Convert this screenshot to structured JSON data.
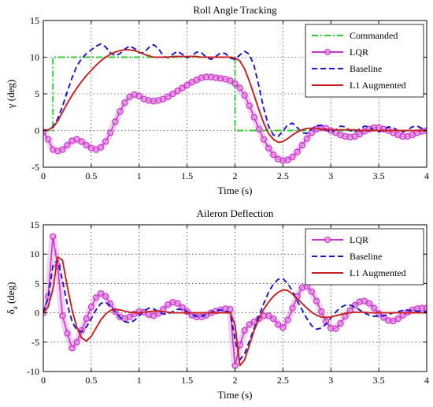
{
  "chart_data": [
    {
      "type": "line",
      "title": "Roll Angle Tracking",
      "xlabel": "Time (s)",
      "ylabel": "γ (deg)",
      "xlim": [
        0,
        4
      ],
      "ylim": [
        -5,
        15
      ],
      "xticks": [
        "0",
        "0.5",
        "1",
        "1.5",
        "2",
        "2.5",
        "3",
        "3.5",
        "4"
      ],
      "yticks": [
        "-5",
        "0",
        "5",
        "10",
        "15"
      ],
      "grid": true,
      "legend_position": "top-right",
      "series": [
        {
          "name": "Commanded",
          "color": "#2ecc2e",
          "style": "dashdot",
          "marker": "none",
          "x": [
            0,
            0.1,
            0.1,
            2.0,
            2.0,
            4.0
          ],
          "y": [
            0,
            0,
            10,
            10,
            0,
            0
          ]
        },
        {
          "name": "LQR",
          "color": "#cc33cc",
          "style": "solid",
          "marker": "circle",
          "x": [
            0,
            0.05,
            0.1,
            0.15,
            0.2,
            0.25,
            0.3,
            0.35,
            0.4,
            0.45,
            0.5,
            0.55,
            0.6,
            0.65,
            0.7,
            0.75,
            0.8,
            0.85,
            0.9,
            0.95,
            1.0,
            1.05,
            1.1,
            1.15,
            1.2,
            1.25,
            1.3,
            1.35,
            1.4,
            1.45,
            1.5,
            1.55,
            1.6,
            1.65,
            1.7,
            1.75,
            1.8,
            1.85,
            1.9,
            1.95,
            2.0,
            2.05,
            2.1,
            2.15,
            2.2,
            2.25,
            2.3,
            2.35,
            2.4,
            2.45,
            2.5,
            2.55,
            2.6,
            2.65,
            2.7,
            2.75,
            2.8,
            2.85,
            2.9,
            2.95,
            3.0,
            3.05,
            3.1,
            3.15,
            3.2,
            3.25,
            3.3,
            3.35,
            3.4,
            3.45,
            3.5,
            3.55,
            3.6,
            3.65,
            3.7,
            3.75,
            3.8,
            3.85,
            3.9,
            3.95,
            4.0
          ],
          "y": [
            -0.2,
            -1.2,
            -2.6,
            -2.8,
            -2.6,
            -2.0,
            -1.4,
            -1.2,
            -1.5,
            -2.0,
            -2.4,
            -2.6,
            -2.3,
            -1.5,
            -0.3,
            1.2,
            2.6,
            3.8,
            4.6,
            4.9,
            4.7,
            4.3,
            4.1,
            4.0,
            4.1,
            4.3,
            4.6,
            5.0,
            5.4,
            5.8,
            6.2,
            6.6,
            6.9,
            7.2,
            7.3,
            7.3,
            7.2,
            7.1,
            7.0,
            6.8,
            6.4,
            5.8,
            4.8,
            3.4,
            1.8,
            0.2,
            -1.2,
            -2.4,
            -3.3,
            -3.9,
            -4.1,
            -4.0,
            -3.6,
            -2.9,
            -2.0,
            -1.1,
            -0.3,
            0.2,
            0.4,
            0.3,
            0.0,
            -0.3,
            -0.6,
            -0.8,
            -0.9,
            -0.8,
            -0.5,
            -0.1,
            0.2,
            0.4,
            0.4,
            0.2,
            0.0,
            -0.3,
            -0.6,
            -0.8,
            -0.8,
            -0.6,
            -0.3,
            -0.1,
            0.0
          ]
        },
        {
          "name": "Baseline",
          "color": "#1414d2",
          "style": "dashed",
          "marker": "none",
          "x": [
            0,
            0.05,
            0.1,
            0.15,
            0.2,
            0.25,
            0.3,
            0.35,
            0.4,
            0.45,
            0.5,
            0.55,
            0.6,
            0.65,
            0.7,
            0.75,
            0.8,
            0.85,
            0.9,
            0.95,
            1.0,
            1.05,
            1.1,
            1.15,
            1.2,
            1.25,
            1.3,
            1.35,
            1.4,
            1.45,
            1.5,
            1.55,
            1.6,
            1.65,
            1.7,
            1.75,
            1.8,
            1.85,
            1.9,
            1.95,
            2.0,
            2.05,
            2.1,
            2.15,
            2.2,
            2.25,
            2.3,
            2.35,
            2.4,
            2.45,
            2.5,
            2.55,
            2.6,
            2.65,
            2.7,
            2.75,
            2.8,
            2.85,
            2.9,
            2.95,
            3.0,
            3.05,
            3.1,
            3.15,
            3.2,
            3.25,
            3.3,
            3.35,
            3.4,
            3.45,
            3.5,
            3.55,
            3.6,
            3.65,
            3.7,
            3.75,
            3.8,
            3.85,
            3.9,
            3.95,
            4.0
          ],
          "y": [
            0,
            0.1,
            0.5,
            1.6,
            3.3,
            5.3,
            7.2,
            8.8,
            9.8,
            10.5,
            11.0,
            11.5,
            11.8,
            11.4,
            10.6,
            10.2,
            10.5,
            11.1,
            11.5,
            11.2,
            10.6,
            10.6,
            11.3,
            11.7,
            11.2,
            10.2,
            9.9,
            10.4,
            10.8,
            10.4,
            9.9,
            10.2,
            10.7,
            10.6,
            10.0,
            9.7,
            10.1,
            10.6,
            10.5,
            9.9,
            9.7,
            10.3,
            10.8,
            10.4,
            8.8,
            6.0,
            3.0,
            0.6,
            -0.6,
            -0.8,
            -0.1,
            0.8,
            1.0,
            0.4,
            -0.3,
            -0.4,
            0.2,
            0.7,
            0.7,
            0.1,
            -0.2,
            0.1,
            0.6,
            0.5,
            0.0,
            -0.2,
            0.2,
            0.6,
            0.5,
            0.0,
            -0.2,
            0.1,
            0.5,
            0.4,
            0.0,
            -0.2,
            0.1,
            0.5,
            0.6,
            0.3,
            0.0
          ]
        },
        {
          "name": "L1 Augmented",
          "color": "#c81e1e",
          "style": "solid",
          "marker": "none",
          "x": [
            0,
            0.05,
            0.1,
            0.15,
            0.2,
            0.25,
            0.3,
            0.35,
            0.4,
            0.45,
            0.5,
            0.55,
            0.6,
            0.65,
            0.7,
            0.75,
            0.8,
            0.85,
            0.9,
            0.95,
            1.0,
            1.05,
            1.1,
            1.15,
            1.2,
            1.25,
            1.3,
            1.35,
            1.4,
            1.45,
            1.5,
            1.55,
            1.6,
            1.65,
            1.7,
            1.75,
            1.8,
            1.85,
            1.9,
            1.95,
            2.0,
            2.05,
            2.1,
            2.15,
            2.2,
            2.25,
            2.3,
            2.35,
            2.4,
            2.45,
            2.5,
            2.55,
            2.6,
            2.65,
            2.7,
            2.75,
            2.8,
            2.85,
            2.9,
            2.95,
            3.0,
            3.05,
            3.1,
            3.15,
            3.2,
            3.25,
            3.3,
            3.35,
            3.4,
            3.45,
            3.5,
            3.55,
            3.6,
            3.65,
            3.7,
            3.75,
            3.8,
            3.85,
            3.9,
            3.95,
            4.0
          ],
          "y": [
            0,
            0.1,
            0.4,
            1.3,
            2.5,
            3.7,
            4.8,
            5.8,
            6.7,
            7.5,
            8.2,
            8.9,
            9.5,
            10.0,
            10.4,
            10.7,
            10.9,
            11.0,
            11.0,
            10.9,
            10.7,
            10.4,
            10.2,
            10.0,
            10.0,
            10.0,
            10.0,
            10.1,
            10.1,
            10.1,
            10.1,
            10.1,
            10.1,
            10.0,
            10.0,
            10.0,
            10.0,
            10.0,
            10.0,
            10.0,
            9.9,
            9.5,
            8.4,
            6.7,
            4.8,
            2.8,
            1.0,
            -0.4,
            -1.2,
            -1.6,
            -1.5,
            -1.1,
            -0.6,
            -0.2,
            0.1,
            0.3,
            0.3,
            0.3,
            0.2,
            0.1,
            0.1,
            0.1,
            0.1,
            0.1,
            0.1,
            0.1,
            0.0,
            0.0,
            0.0,
            0.0,
            0.0,
            0.0,
            0.0,
            0.0,
            0.0,
            0.0,
            0.0,
            0.0,
            0.0,
            0.0,
            0.0
          ]
        }
      ]
    },
    {
      "type": "line",
      "title": "Aileron Deflection",
      "xlabel": "Time (s)",
      "ylabel": "δa (deg)",
      "ylabel_main": "δ",
      "ylabel_sub": "a",
      "ylabel_unit": " (deg)",
      "xlim": [
        0,
        4
      ],
      "ylim": [
        -10,
        15
      ],
      "xticks": [
        "0",
        "0.5",
        "1",
        "1.5",
        "2",
        "2.5",
        "3",
        "3.5",
        "4"
      ],
      "yticks": [
        "-10",
        "-5",
        "0",
        "5",
        "10",
        "15"
      ],
      "grid": true,
      "legend_position": "top-right",
      "series": [
        {
          "name": "LQR",
          "color": "#cc33cc",
          "style": "solid",
          "marker": "circle",
          "x": [
            0,
            0.05,
            0.1,
            0.15,
            0.2,
            0.25,
            0.3,
            0.35,
            0.4,
            0.45,
            0.5,
            0.55,
            0.6,
            0.65,
            0.7,
            0.75,
            0.8,
            0.85,
            0.9,
            0.95,
            1.0,
            1.05,
            1.1,
            1.15,
            1.2,
            1.25,
            1.3,
            1.35,
            1.4,
            1.45,
            1.5,
            1.55,
            1.6,
            1.65,
            1.7,
            1.75,
            1.8,
            1.85,
            1.9,
            1.95,
            2.0,
            2.05,
            2.1,
            2.15,
            2.2,
            2.25,
            2.3,
            2.35,
            2.4,
            2.45,
            2.5,
            2.55,
            2.6,
            2.65,
            2.7,
            2.75,
            2.8,
            2.85,
            2.9,
            2.95,
            3.0,
            3.05,
            3.1,
            3.15,
            3.2,
            3.25,
            3.3,
            3.35,
            3.4,
            3.45,
            3.5,
            3.55,
            3.6,
            3.65,
            3.7,
            3.75,
            3.8,
            3.85,
            3.9,
            3.95,
            4.0
          ],
          "y": [
            0.0,
            2.8,
            13.0,
            8.0,
            -0.5,
            -3.5,
            -6.0,
            -5.0,
            -3.0,
            -1.0,
            1.0,
            2.6,
            3.3,
            2.8,
            1.5,
            0.2,
            -0.7,
            -1.0,
            -0.7,
            -0.2,
            0.2,
            0.1,
            -0.3,
            -0.5,
            -0.1,
            0.6,
            1.4,
            1.8,
            1.6,
            0.9,
            0.2,
            -0.4,
            -0.7,
            -0.7,
            -0.4,
            0.0,
            0.3,
            0.5,
            0.7,
            0.6,
            -9.0,
            -5.5,
            -3.0,
            -2.0,
            -1.5,
            -1.0,
            -0.5,
            -0.5,
            -1.0,
            -2.0,
            -2.5,
            -1.2,
            0.8,
            2.8,
            4.3,
            4.5,
            3.6,
            2.0,
            0.2,
            -1.5,
            -2.6,
            -2.7,
            -1.8,
            -0.6,
            0.4,
            1.3,
            1.9,
            2.0,
            1.6,
            0.8,
            -0.1,
            -0.8,
            -1.3,
            -1.4,
            -1.0,
            -0.4,
            0.1,
            0.5,
            0.7,
            0.8,
            0.8
          ]
        },
        {
          "name": "Baseline",
          "color": "#1414d2",
          "style": "dashed",
          "marker": "none",
          "x": [
            0,
            0.05,
            0.1,
            0.15,
            0.2,
            0.25,
            0.3,
            0.35,
            0.4,
            0.45,
            0.5,
            0.55,
            0.6,
            0.65,
            0.7,
            0.75,
            0.8,
            0.85,
            0.9,
            0.95,
            1.0,
            1.05,
            1.1,
            1.15,
            1.2,
            1.25,
            1.3,
            1.35,
            1.4,
            1.45,
            1.5,
            1.55,
            1.6,
            1.65,
            1.7,
            1.75,
            1.8,
            1.85,
            1.9,
            1.95,
            2.0,
            2.05,
            2.1,
            2.15,
            2.2,
            2.25,
            2.3,
            2.35,
            2.4,
            2.45,
            2.5,
            2.55,
            2.6,
            2.65,
            2.7,
            2.75,
            2.8,
            2.85,
            2.9,
            2.95,
            3.0,
            3.05,
            3.1,
            3.15,
            3.2,
            3.25,
            3.3,
            3.35,
            3.4,
            3.45,
            3.5,
            3.55,
            3.6,
            3.65,
            3.7,
            3.75,
            3.8,
            3.85,
            3.9,
            3.95,
            4.0
          ],
          "y": [
            0,
            2.5,
            8.0,
            9.0,
            5.5,
            1.5,
            -1.5,
            -3.0,
            -3.2,
            -2.4,
            -1.0,
            0.5,
            1.6,
            1.8,
            1.2,
            0.2,
            -0.8,
            -1.5,
            -1.7,
            -1.3,
            -0.5,
            0.3,
            0.8,
            0.7,
            0.2,
            -0.2,
            -0.2,
            0.2,
            0.6,
            0.6,
            0.2,
            -0.3,
            -0.6,
            -0.6,
            -0.3,
            0.1,
            0.4,
            0.5,
            0.3,
            0.0,
            -4.5,
            -8.0,
            -7.0,
            -4.8,
            -2.6,
            -0.5,
            1.6,
            3.5,
            4.9,
            5.7,
            5.8,
            5.0,
            3.7,
            2.0,
            0.5,
            -1.0,
            -2.2,
            -2.8,
            -2.6,
            -1.9,
            -0.9,
            0.1,
            0.9,
            1.3,
            1.3,
            1.0,
            0.5,
            0.0,
            -0.4,
            -0.6,
            -0.6,
            -0.5,
            -0.3,
            0.0,
            0.2,
            0.4,
            0.4,
            0.4,
            0.3,
            0.2,
            0.2
          ]
        },
        {
          "name": "L1 Augmented",
          "color": "#c81e1e",
          "style": "solid",
          "marker": "none",
          "x": [
            0,
            0.05,
            0.1,
            0.15,
            0.2,
            0.25,
            0.3,
            0.35,
            0.4,
            0.45,
            0.5,
            0.55,
            0.6,
            0.65,
            0.7,
            0.75,
            0.8,
            0.85,
            0.9,
            0.95,
            1.0,
            1.05,
            1.1,
            1.15,
            1.2,
            1.25,
            1.3,
            1.35,
            1.4,
            1.45,
            1.5,
            1.55,
            1.6,
            1.65,
            1.7,
            1.75,
            1.8,
            1.85,
            1.9,
            1.95,
            2.0,
            2.05,
            2.1,
            2.15,
            2.2,
            2.25,
            2.3,
            2.35,
            2.4,
            2.45,
            2.5,
            2.55,
            2.6,
            2.65,
            2.7,
            2.75,
            2.8,
            2.85,
            2.9,
            2.95,
            3.0,
            3.05,
            3.1,
            3.15,
            3.2,
            3.25,
            3.3,
            3.35,
            3.4,
            3.45,
            3.5,
            3.55,
            3.6,
            3.65,
            3.7,
            3.75,
            3.8,
            3.85,
            3.9,
            3.95,
            4.0
          ],
          "y": [
            0,
            1.0,
            4.0,
            9.5,
            9.0,
            4.5,
            0.5,
            -2.5,
            -4.3,
            -4.8,
            -4.0,
            -2.6,
            -1.2,
            -0.2,
            0.4,
            0.6,
            0.5,
            0.3,
            0.1,
            0.0,
            0.0,
            0.1,
            0.2,
            0.3,
            0.3,
            0.2,
            0.1,
            0.0,
            0.0,
            0.0,
            0.0,
            0.0,
            0.0,
            0.0,
            0.0,
            0.0,
            0.0,
            0.0,
            0.0,
            0.0,
            -2.0,
            -9.0,
            -8.0,
            -5.5,
            -3.0,
            -1.0,
            0.6,
            1.8,
            2.8,
            3.5,
            3.9,
            3.8,
            3.2,
            2.4,
            1.6,
            0.8,
            0.1,
            -0.4,
            -0.7,
            -0.8,
            -0.7,
            -0.5,
            -0.3,
            -0.1,
            0.0,
            0.1,
            0.1,
            0.1,
            0.0,
            0.0,
            0.0,
            0.0,
            0.0,
            0.0,
            0.0,
            0.0,
            0.0,
            0.0,
            0.0,
            0.0,
            0.0
          ]
        }
      ]
    }
  ]
}
